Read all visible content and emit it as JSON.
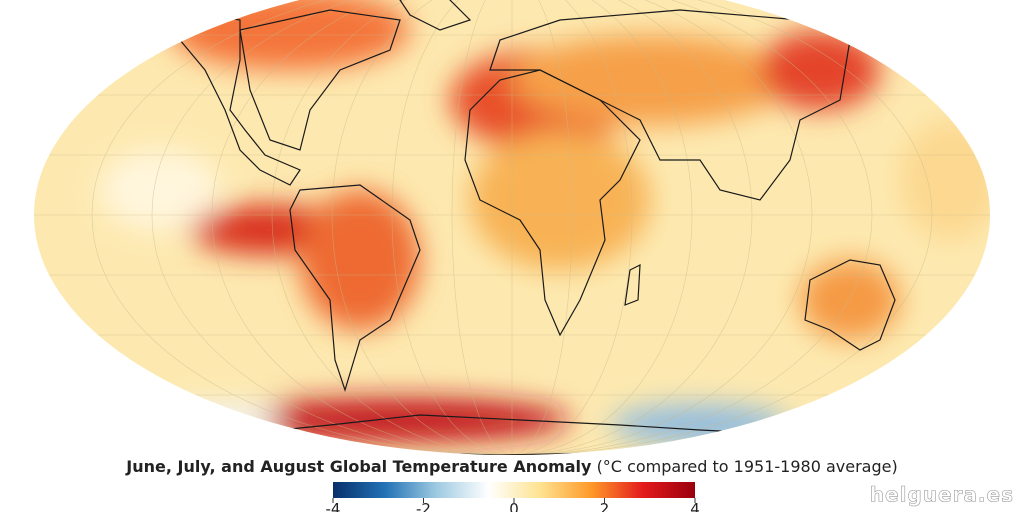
{
  "map": {
    "title_bold": "June, July, and August Global Temperature Anomaly",
    "title_rest": "(°C compared to 1951-1980 average)",
    "colorbar": {
      "lim": [
        -4,
        4
      ],
      "ticks": [
        -4,
        -2,
        0,
        2,
        4
      ],
      "colors": [
        "#08306b",
        "#2171b5",
        "#9ecae1",
        "#ffffff",
        "#fee391",
        "#fe9929",
        "#e31a1c",
        "#99000d"
      ]
    }
  },
  "watermark": "helguera.es"
}
